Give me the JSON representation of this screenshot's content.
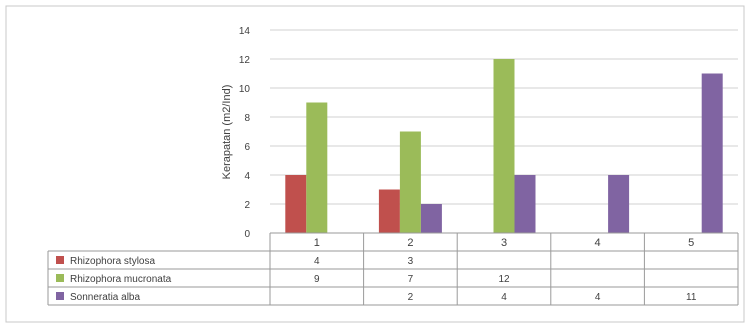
{
  "chart_data": {
    "type": "bar",
    "title": "",
    "xlabel": "",
    "ylabel": "Kerapatan (m2/Ind)",
    "ylim": [
      0,
      14
    ],
    "yticks": [
      0,
      2,
      4,
      6,
      8,
      10,
      12,
      14
    ],
    "grid": true,
    "legend": "data-table-below",
    "categories": [
      "1",
      "2",
      "3",
      "4",
      "5"
    ],
    "series": [
      {
        "name": "Rhizophora stylosa",
        "color": "#c0504d",
        "values": [
          4,
          3,
          null,
          null,
          null
        ]
      },
      {
        "name": "Rhizophora mucronata",
        "color": "#9bbb59",
        "values": [
          9,
          7,
          12,
          null,
          null
        ]
      },
      {
        "name": "Sonneratia alba",
        "color": "#8064a2",
        "values": [
          null,
          2,
          4,
          4,
          11
        ]
      }
    ]
  }
}
